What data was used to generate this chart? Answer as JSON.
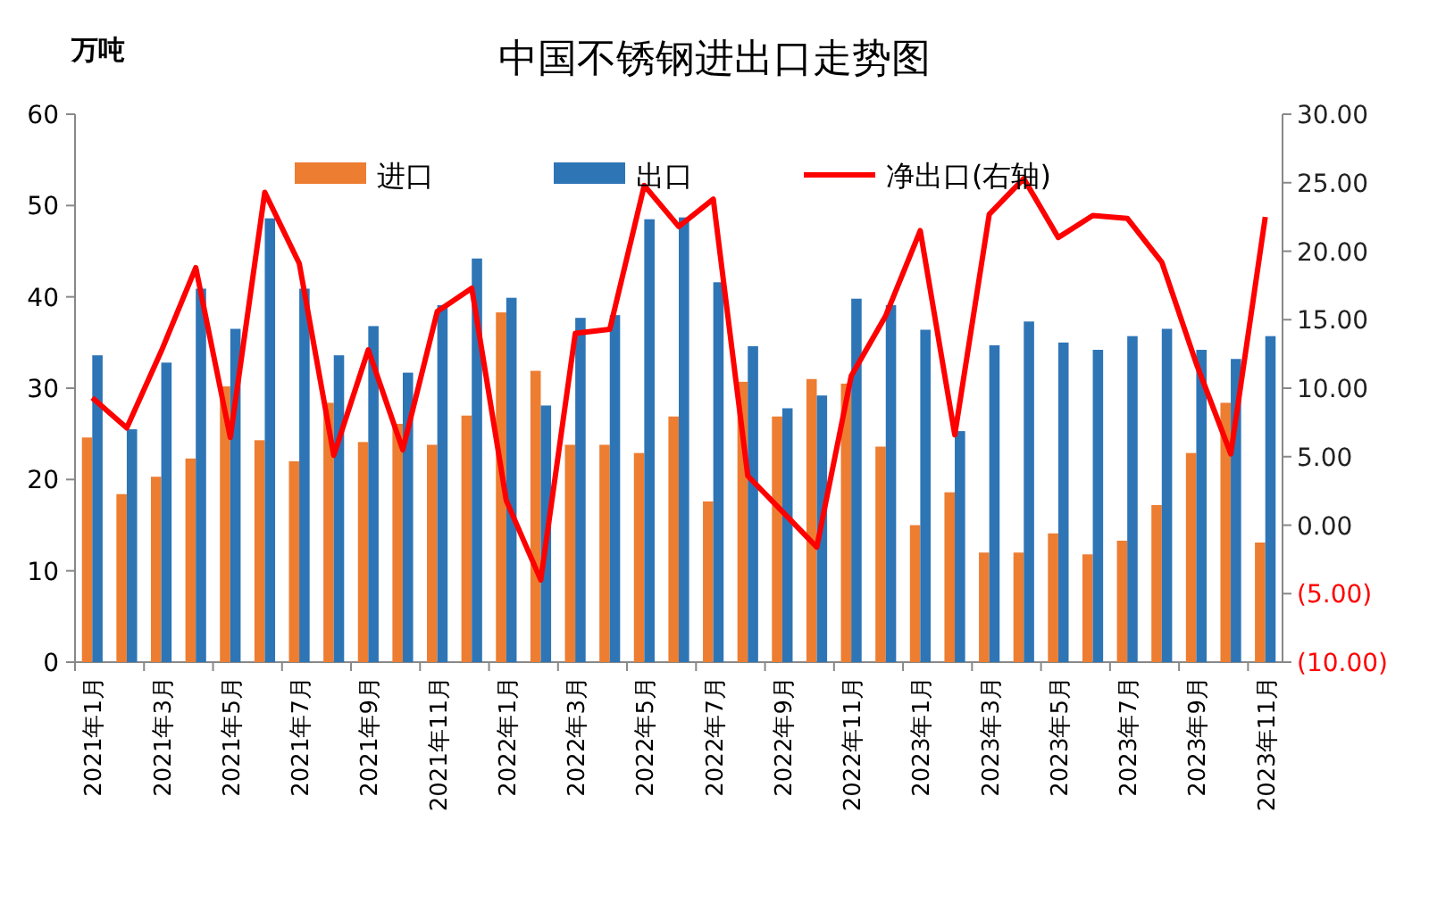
{
  "chart_data": {
    "type": "bar",
    "title": "中国不锈钢进出口走势图",
    "ylabel": "万吨",
    "categories": [
      "2021年1月",
      null,
      "2021年3月",
      null,
      "2021年5月",
      null,
      "2021年7月",
      null,
      "2021年9月",
      null,
      "2021年11月",
      null,
      "2022年1月",
      null,
      "2022年3月",
      null,
      "2022年5月",
      null,
      "2022年7月",
      null,
      "2022年9月",
      null,
      "2022年11月",
      null,
      "2023年1月",
      null,
      "2023年3月",
      null,
      "2023年5月",
      null,
      "2023年7月",
      null,
      "2023年9月",
      null,
      "2023年11月"
    ],
    "series": [
      {
        "name": "进口",
        "color": "#ed7d31",
        "values": [
          24.6,
          18.4,
          20.3,
          22.3,
          30.2,
          24.3,
          22.0,
          28.4,
          24.1,
          26.1,
          23.8,
          27.0,
          38.3,
          31.9,
          23.8,
          23.8,
          22.9,
          26.9,
          17.6,
          30.7,
          26.9,
          31.0,
          30.5,
          23.6,
          15.0,
          18.6,
          12.0,
          12.0,
          14.1,
          11.8,
          13.3,
          17.2,
          22.9,
          28.4,
          13.1
        ]
      },
      {
        "name": "出口",
        "color": "#2e75b6",
        "values": [
          33.6,
          25.5,
          32.8,
          40.9,
          36.5,
          48.6,
          40.9,
          33.6,
          36.8,
          31.7,
          39.1,
          44.2,
          39.9,
          28.1,
          37.7,
          38.0,
          48.5,
          48.7,
          41.6,
          34.6,
          27.8,
          29.2,
          39.8,
          39.1,
          36.4,
          25.3,
          34.7,
          37.3,
          35.0,
          34.2,
          35.7,
          36.5,
          34.2,
          33.2,
          35.7
        ]
      },
      {
        "name": "净出口(右轴)",
        "type": "line",
        "axis": "y2",
        "color": "#ff0000",
        "values": [
          9.3,
          7.1,
          12.7,
          18.8,
          6.4,
          24.3,
          19.1,
          5.1,
          12.8,
          5.5,
          15.6,
          17.3,
          1.8,
          -4.0,
          14.0,
          14.3,
          24.8,
          21.8,
          23.8,
          3.6,
          1.0,
          -1.6,
          10.9,
          15.3,
          21.5,
          6.6,
          22.7,
          25.3,
          21.0,
          22.6,
          22.4,
          19.2,
          11.8,
          5.2,
          22.5
        ]
      }
    ],
    "ylim": [
      0,
      60
    ],
    "yticks": [
      0,
      10,
      20,
      30,
      40,
      50,
      60
    ],
    "y2lim": [
      -10,
      30
    ],
    "y2ticks": [
      {
        "value": -10,
        "label": "(10.00)"
      },
      {
        "value": -5,
        "label": "(5.00)"
      },
      {
        "value": 0,
        "label": "0.00"
      },
      {
        "value": 5,
        "label": "5.00"
      },
      {
        "value": 10,
        "label": "10.00"
      },
      {
        "value": 15,
        "label": "15.00"
      },
      {
        "value": 20,
        "label": "20.00"
      },
      {
        "value": 25,
        "label": "25.00"
      },
      {
        "value": 30,
        "label": "30.00"
      }
    ],
    "legend": "top",
    "grid": false,
    "marker": "none",
    "line_style": "solid"
  }
}
